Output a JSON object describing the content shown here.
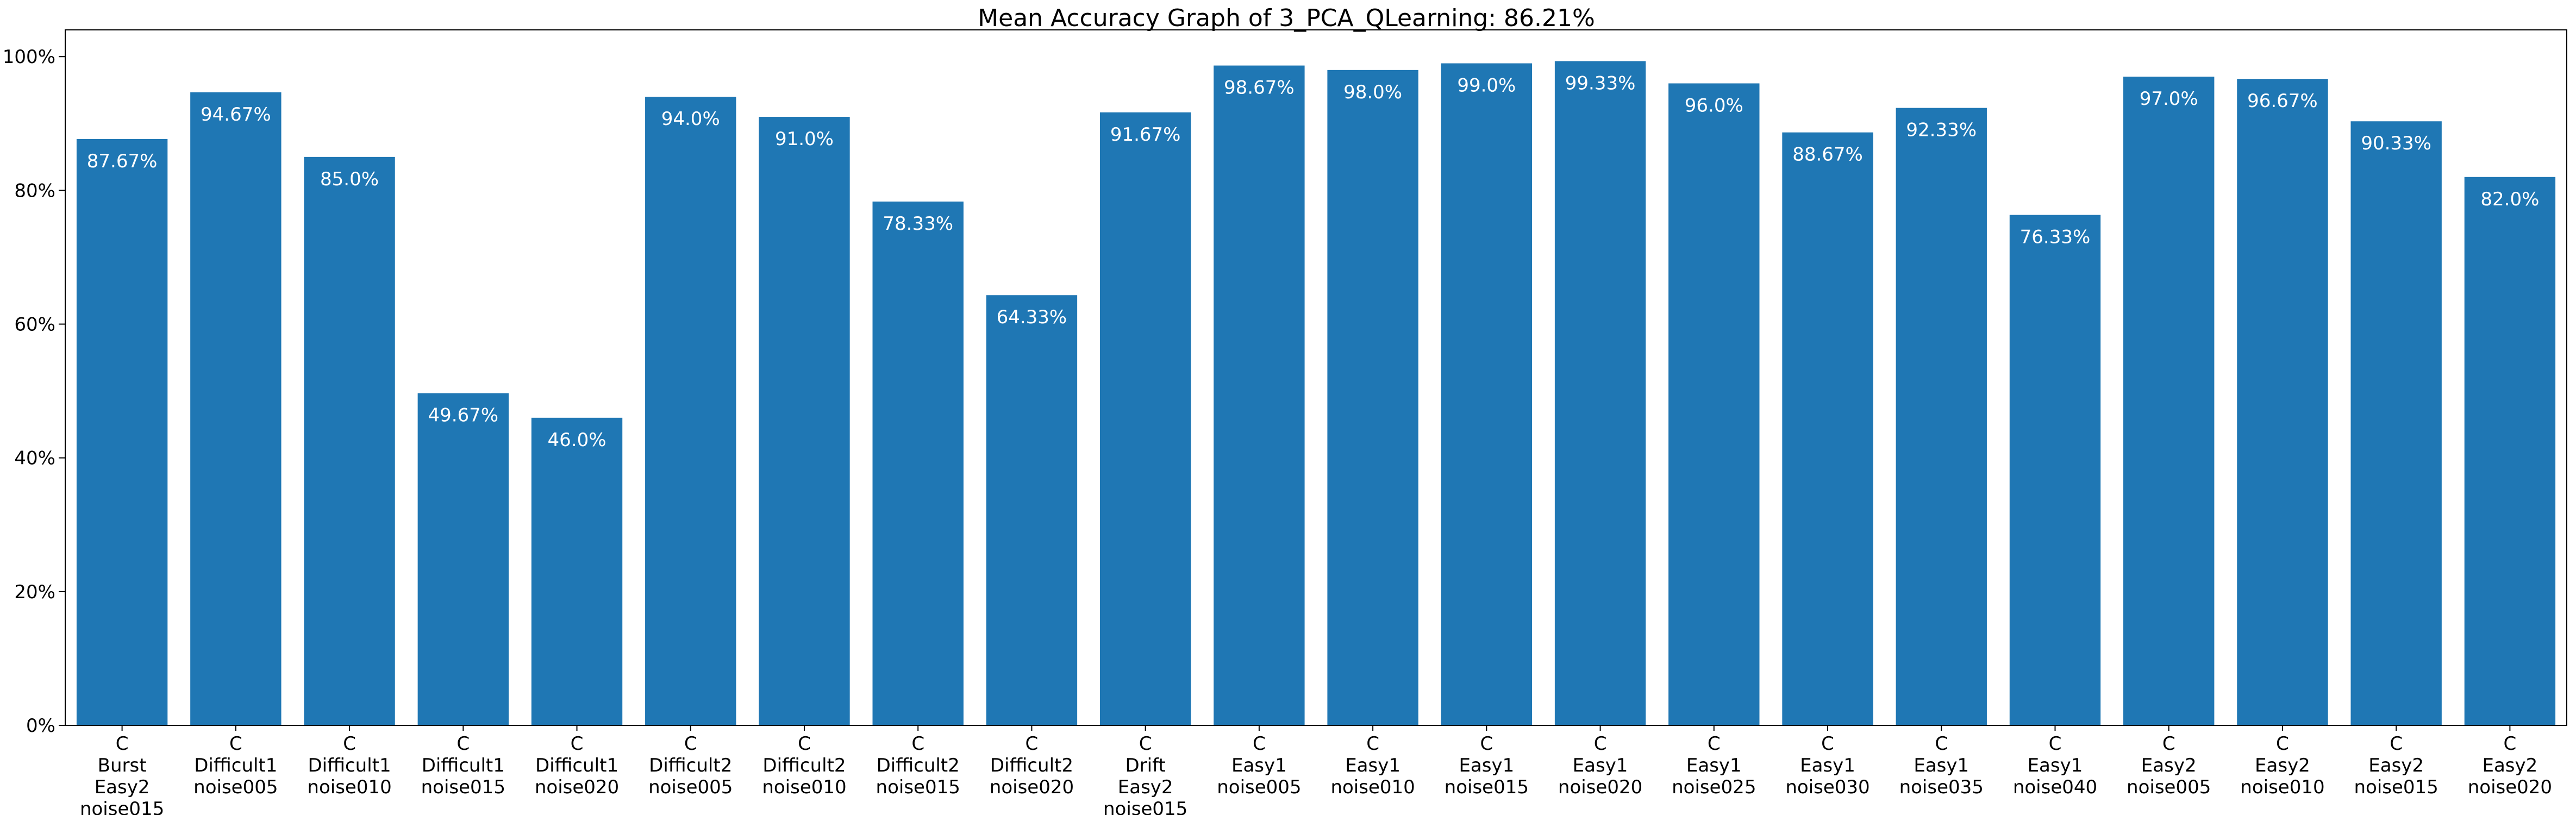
{
  "chart_data": {
    "type": "bar",
    "title": "Mean Accuracy Graph of 3_PCA_QLearning: 86.21%",
    "xlabel": "",
    "ylabel": "",
    "ylim": [
      0,
      104
    ],
    "yticks": [
      0,
      20,
      40,
      60,
      80,
      100
    ],
    "ytick_labels": [
      "0%",
      "20%",
      "40%",
      "60%",
      "80%",
      "100%"
    ],
    "bar_color": "#1f77b4",
    "value_label_color": "#ffffff",
    "categories": [
      [
        "C",
        "Burst",
        "Easy2",
        "noise015"
      ],
      [
        "C",
        "Difficult1",
        "noise005"
      ],
      [
        "C",
        "Difficult1",
        "noise010"
      ],
      [
        "C",
        "Difficult1",
        "noise015"
      ],
      [
        "C",
        "Difficult1",
        "noise020"
      ],
      [
        "C",
        "Difficult2",
        "noise005"
      ],
      [
        "C",
        "Difficult2",
        "noise010"
      ],
      [
        "C",
        "Difficult2",
        "noise015"
      ],
      [
        "C",
        "Difficult2",
        "noise020"
      ],
      [
        "C",
        "Drift",
        "Easy2",
        "noise015"
      ],
      [
        "C",
        "Easy1",
        "noise005"
      ],
      [
        "C",
        "Easy1",
        "noise010"
      ],
      [
        "C",
        "Easy1",
        "noise015"
      ],
      [
        "C",
        "Easy1",
        "noise020"
      ],
      [
        "C",
        "Easy1",
        "noise025"
      ],
      [
        "C",
        "Easy1",
        "noise030"
      ],
      [
        "C",
        "Easy1",
        "noise035"
      ],
      [
        "C",
        "Easy1",
        "noise040"
      ],
      [
        "C",
        "Easy2",
        "noise005"
      ],
      [
        "C",
        "Easy2",
        "noise010"
      ],
      [
        "C",
        "Easy2",
        "noise015"
      ],
      [
        "C",
        "Easy2",
        "noise020"
      ]
    ],
    "values": [
      87.67,
      94.67,
      85.0,
      49.67,
      46.0,
      94.0,
      91.0,
      78.33,
      64.33,
      91.67,
      98.67,
      98.0,
      99.0,
      99.33,
      96.0,
      88.67,
      92.33,
      76.33,
      97.0,
      96.67,
      90.33,
      82.0
    ],
    "value_labels": [
      "87.67%",
      "94.67%",
      "85.0%",
      "49.67%",
      "46.0%",
      "94.0%",
      "91.0%",
      "78.33%",
      "64.33%",
      "91.67%",
      "98.67%",
      "98.0%",
      "99.0%",
      "99.33%",
      "96.0%",
      "88.67%",
      "92.33%",
      "76.33%",
      "97.0%",
      "96.67%",
      "90.33%",
      "82.0%"
    ]
  }
}
